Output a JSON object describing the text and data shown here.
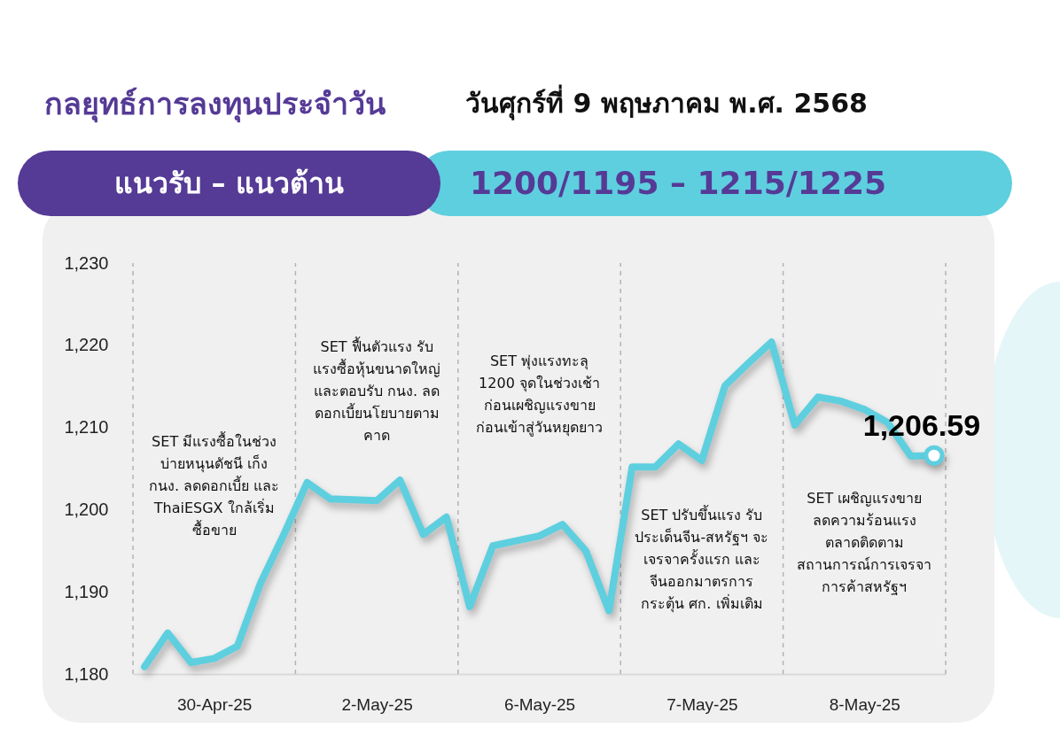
{
  "chart_data": {
    "type": "line",
    "title": "กลยุทธ์การลงทุนประจำวัน",
    "subtitle": "วันศุกร์ที่ 9 พฤษภาคม พ.ศ. 2568",
    "annotations": [
      "แนวรับ – แนวต้าน",
      "1200/1195 – 1215/1225",
      "SET มีแรงซื้อในช่วง\nบ่ายหนุนดัชนี เก็ง\nกนง. ลดดอกเบี้ย และ\nThaiESGX ใกล้เริ่ม\nซื้อขาย",
      "SET ฟื้นตัวแรง รับ\nแรงซื้อหุ้นขนาดใหญ่\nและตอบรับ กนง. ลด\nดอกเบี้ยนโยบายตาม\nคาด",
      "SET พุ่งแรงทะลุ\n1200 จุดในช่วงเช้า\nก่อนเผชิญแรงขาย\nก่อนเข้าสู่วันหยุดยาว",
      "SET ปรับขึ้นแรง รับ\nประเด็นจีน-สหรัฐฯ จะ\nเจรจาครั้งแรก และ\nจีนออกมาตรการ\nกระตุ้น ศก. เพิ่มเติม",
      "SET เผชิญแรงขาย\nลดความร้อนแรง\nตลาดติดตาม\nสถานการณ์การเจรจา\nการค้าสหรัฐฯ"
    ],
    "categories": [
      null,
      null,
      null,
      "30-Apr-25",
      null,
      null,
      null,
      null,
      null,
      null,
      "2-May-25",
      null,
      null,
      null,
      null,
      null,
      null,
      "6-May-25",
      null,
      null,
      null,
      null,
      null,
      null,
      "7-May-25",
      null,
      null,
      null,
      null,
      null,
      null,
      "8-May-25",
      null,
      null,
      null
    ],
    "ylim": [
      1180,
      1230
    ],
    "yticks": [
      {
        "value": 1180,
        "label": "1,180"
      },
      {
        "value": 1190,
        "label": "1,190"
      },
      {
        "value": 1200,
        "label": "1,200"
      },
      {
        "value": 1210,
        "label": "1,210"
      },
      {
        "value": 1220,
        "label": "1,220"
      },
      {
        "value": 1230,
        "label": "1,230"
      }
    ],
    "grid": "x",
    "series": [
      {
        "color": "#5ecfdf",
        "line_style": "solid",
        "values": [
          1180.9,
          1185.0,
          1181.4,
          1181.9,
          1183.4,
          1191.1,
          1197.0,
          1203.3,
          1201.3,
          1201.2,
          1201.1,
          1203.6,
          1197.0,
          1199.1,
          1188.2,
          1195.6,
          1196.2,
          1196.8,
          1198.2,
          1195.0,
          1187.7,
          1205.2,
          1205.2,
          1208.0,
          1206.0,
          1215.1,
          1217.8,
          1220.4,
          1210.3,
          1213.7,
          1213.2,
          1212.2,
          1210.6,
          1206.5,
          1206.6
        ]
      },
      {
        "type": "scatter",
        "color": "#5ecfdf",
        "marker": "circle",
        "values": [
          null,
          null,
          null,
          null,
          null,
          null,
          null,
          null,
          null,
          null,
          null,
          null,
          null,
          null,
          null,
          null,
          null,
          null,
          null,
          null,
          null,
          null,
          null,
          null,
          null,
          null,
          null,
          null,
          null,
          null,
          null,
          null,
          null,
          null,
          1206.59
        ],
        "value_labels": [
          null,
          null,
          null,
          null,
          null,
          null,
          null,
          null,
          null,
          null,
          null,
          null,
          null,
          null,
          null,
          null,
          null,
          null,
          null,
          null,
          null,
          null,
          null,
          null,
          null,
          null,
          null,
          null,
          null,
          null,
          null,
          null,
          null,
          null,
          "1,206.59"
        ]
      }
    ]
  }
}
